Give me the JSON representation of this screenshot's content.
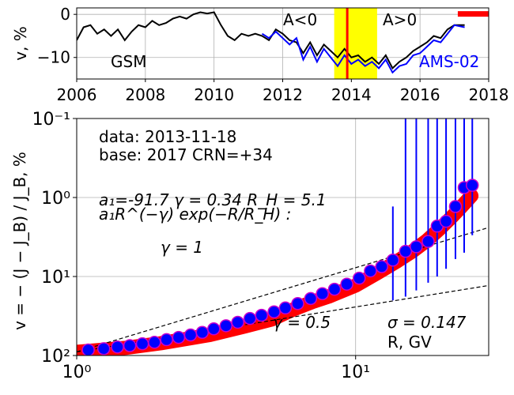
{
  "chart_data": [
    {
      "type": "line",
      "ylabel": "v, %",
      "xlim": [
        2006,
        2018
      ],
      "ylim": [
        -15,
        1.5
      ],
      "x_ticks": [
        "2006",
        "2008",
        "2010",
        "2012",
        "2014",
        "2016",
        "2018"
      ],
      "x_tick_values": [
        2006,
        2008,
        2010,
        2012,
        2014,
        2016,
        2018
      ],
      "y_ticks": [
        "0",
        "−10"
      ],
      "y_tick_values": [
        0,
        -10
      ],
      "grid": true,
      "annotations": {
        "gsm": "GSM",
        "ams": "AMS-02",
        "neg": "A<0",
        "pos": "A>0"
      },
      "colors": {
        "gsm": "#000000",
        "ams": "#0000ff",
        "band": "#ffff00",
        "marker": "#ff0000"
      },
      "band_x": [
        2013.5,
        2014.75
      ],
      "date_marker_x": 2013.88,
      "red_segment": {
        "x": [
          2017.1,
          2018
        ],
        "y": [
          0.2,
          0.2
        ]
      },
      "series": [
        {
          "name": "GSM",
          "x": [
            2006.0,
            2006.2,
            2006.4,
            2006.6,
            2006.8,
            2007.0,
            2007.2,
            2007.4,
            2007.6,
            2007.8,
            2008.0,
            2008.2,
            2008.4,
            2008.6,
            2008.8,
            2009.0,
            2009.2,
            2009.4,
            2009.6,
            2009.8,
            2010.0,
            2010.2,
            2010.4,
            2010.6,
            2010.8,
            2011.0,
            2011.2,
            2011.4,
            2011.6,
            2011.8,
            2012.0,
            2012.2,
            2012.4,
            2012.6,
            2012.8,
            2013.0,
            2013.2,
            2013.4,
            2013.6,
            2013.8,
            2014.0,
            2014.2,
            2014.4,
            2014.6,
            2014.8,
            2015.0,
            2015.2,
            2015.4,
            2015.6,
            2015.8,
            2016.0,
            2016.2,
            2016.4,
            2016.6,
            2016.8,
            2017.0,
            2017.3
          ],
          "values": [
            -6,
            -3,
            -2.5,
            -4.5,
            -3.5,
            -5,
            -3.5,
            -6,
            -4,
            -2.5,
            -3,
            -1.5,
            -2.5,
            -2,
            -1,
            -0.5,
            -1,
            0,
            0.5,
            0.2,
            0.5,
            -2.5,
            -5,
            -6,
            -4.5,
            -5,
            -4.5,
            -5,
            -6,
            -3.5,
            -4.5,
            -6,
            -6.5,
            -9,
            -6.5,
            -9.5,
            -7,
            -8.5,
            -10,
            -8,
            -10,
            -9.5,
            -11,
            -10,
            -11.5,
            -9.5,
            -12.5,
            -11,
            -10,
            -8.5,
            -7.5,
            -6.5,
            -5,
            -5.5,
            -3.5,
            -2.5,
            -2.5
          ]
        },
        {
          "name": "AMS-02",
          "x": [
            2011.4,
            2011.6,
            2011.8,
            2012.0,
            2012.2,
            2012.4,
            2012.6,
            2012.8,
            2013.0,
            2013.2,
            2013.4,
            2013.6,
            2013.8,
            2014.0,
            2014.2,
            2014.4,
            2014.6,
            2014.8,
            2015.0,
            2015.2,
            2015.4,
            2015.6,
            2015.8,
            2016.0,
            2016.2,
            2016.4,
            2016.6,
            2016.8,
            2017.0,
            2017.3
          ],
          "values": [
            -4.5,
            -5.5,
            -4,
            -5.5,
            -7,
            -5.5,
            -10.5,
            -7.5,
            -11,
            -8,
            -10,
            -12,
            -9.5,
            -11.5,
            -10.5,
            -12,
            -11,
            -12.5,
            -10.5,
            -13.5,
            -12,
            -11.5,
            -9.5,
            -9,
            -7.5,
            -6,
            -6.5,
            -4.5,
            -2.5,
            -3
          ]
        }
      ]
    },
    {
      "type": "scatter",
      "ylabel": "v = − (J − J_B) / J_B, %",
      "xlabel": "",
      "x_scale": "log",
      "y_scale": "log",
      "y_inverted": true,
      "xlim": [
        1,
        30
      ],
      "ylim": [
        0.1,
        100
      ],
      "x_ticks": [
        "10⁰",
        "10¹"
      ],
      "x_tick_values": [
        1,
        10
      ],
      "y_ticks": [
        "10⁻¹",
        "10⁰",
        "10¹",
        "10²"
      ],
      "y_tick_values": [
        0.1,
        1,
        10,
        100
      ],
      "grid": true,
      "annotations": {
        "data_line": "data: 2013-11-18",
        "base_line": "base: 2017   CRN=+34",
        "params_line": "a₁=-91.7  γ = 0.34  R_H =  5.1",
        "formula_line": "a₁R^(−γ) exp(−R/R_H) :",
        "gamma1": "γ = 1",
        "gamma05": "γ = 0.5",
        "sigma": "σ = 0.147",
        "rgv": "R, GV"
      },
      "colors": {
        "points": "#0000ff",
        "point_edge": "#cc00cc",
        "fit": "#ff0000",
        "errbar": "#0000ff"
      },
      "points": {
        "x": [
          1.1,
          1.25,
          1.4,
          1.55,
          1.72,
          1.9,
          2.1,
          2.32,
          2.56,
          2.82,
          3.1,
          3.43,
          3.78,
          4.18,
          4.6,
          5.1,
          5.6,
          6.2,
          6.9,
          7.6,
          8.4,
          9.3,
          10.3,
          11.3,
          12.4,
          13.6,
          15.1,
          16.5,
          18.2,
          19.6,
          21.1,
          22.8,
          24.5,
          26.2
        ],
        "values": [
          85,
          82,
          78,
          75,
          71,
          68,
          63,
          59,
          55,
          51,
          46,
          42,
          38,
          34,
          31,
          28,
          25,
          22,
          19,
          16.5,
          14.5,
          12.5,
          10.5,
          8.5,
          7.5,
          6.2,
          4.8,
          4.2,
          3.6,
          2.3,
          2.0,
          1.3,
          0.75,
          0.7
        ],
        "err_top": [
          null,
          null,
          null,
          null,
          null,
          null,
          null,
          null,
          null,
          null,
          null,
          null,
          null,
          null,
          null,
          null,
          null,
          null,
          null,
          null,
          null,
          null,
          null,
          null,
          null,
          1.3,
          0.1,
          0.1,
          0.1,
          0.1,
          0.1,
          0.1,
          0.1,
          0.1
        ],
        "err_bottom": [
          null,
          null,
          null,
          null,
          null,
          null,
          null,
          null,
          null,
          null,
          null,
          null,
          null,
          null,
          null,
          null,
          null,
          null,
          null,
          null,
          null,
          null,
          null,
          null,
          null,
          20,
          18,
          15,
          12,
          10,
          8,
          6,
          5,
          3
        ]
      },
      "fit_curve": {
        "x": [
          1.0,
          1.5,
          2.0,
          3.0,
          4.0,
          5.0,
          6.0,
          7.0,
          8.0,
          10.0,
          12.0,
          14.0,
          16.0,
          18.0,
          20.0,
          22.0,
          24.0,
          26.0
        ],
        "values": [
          90,
          80,
          70,
          55,
          43,
          35,
          26,
          21,
          18,
          13,
          9,
          6.5,
          4.8,
          3.5,
          2.5,
          1.8,
          1.3,
          0.95
        ]
      },
      "reference_lines": [
        {
          "label": "γ = 1",
          "x": [
            1,
            30
          ],
          "values": [
            90,
            2.4
          ]
        },
        {
          "label": "γ = 0.5",
          "x": [
            1,
            30
          ],
          "values": [
            90,
            13
          ]
        }
      ]
    }
  ]
}
